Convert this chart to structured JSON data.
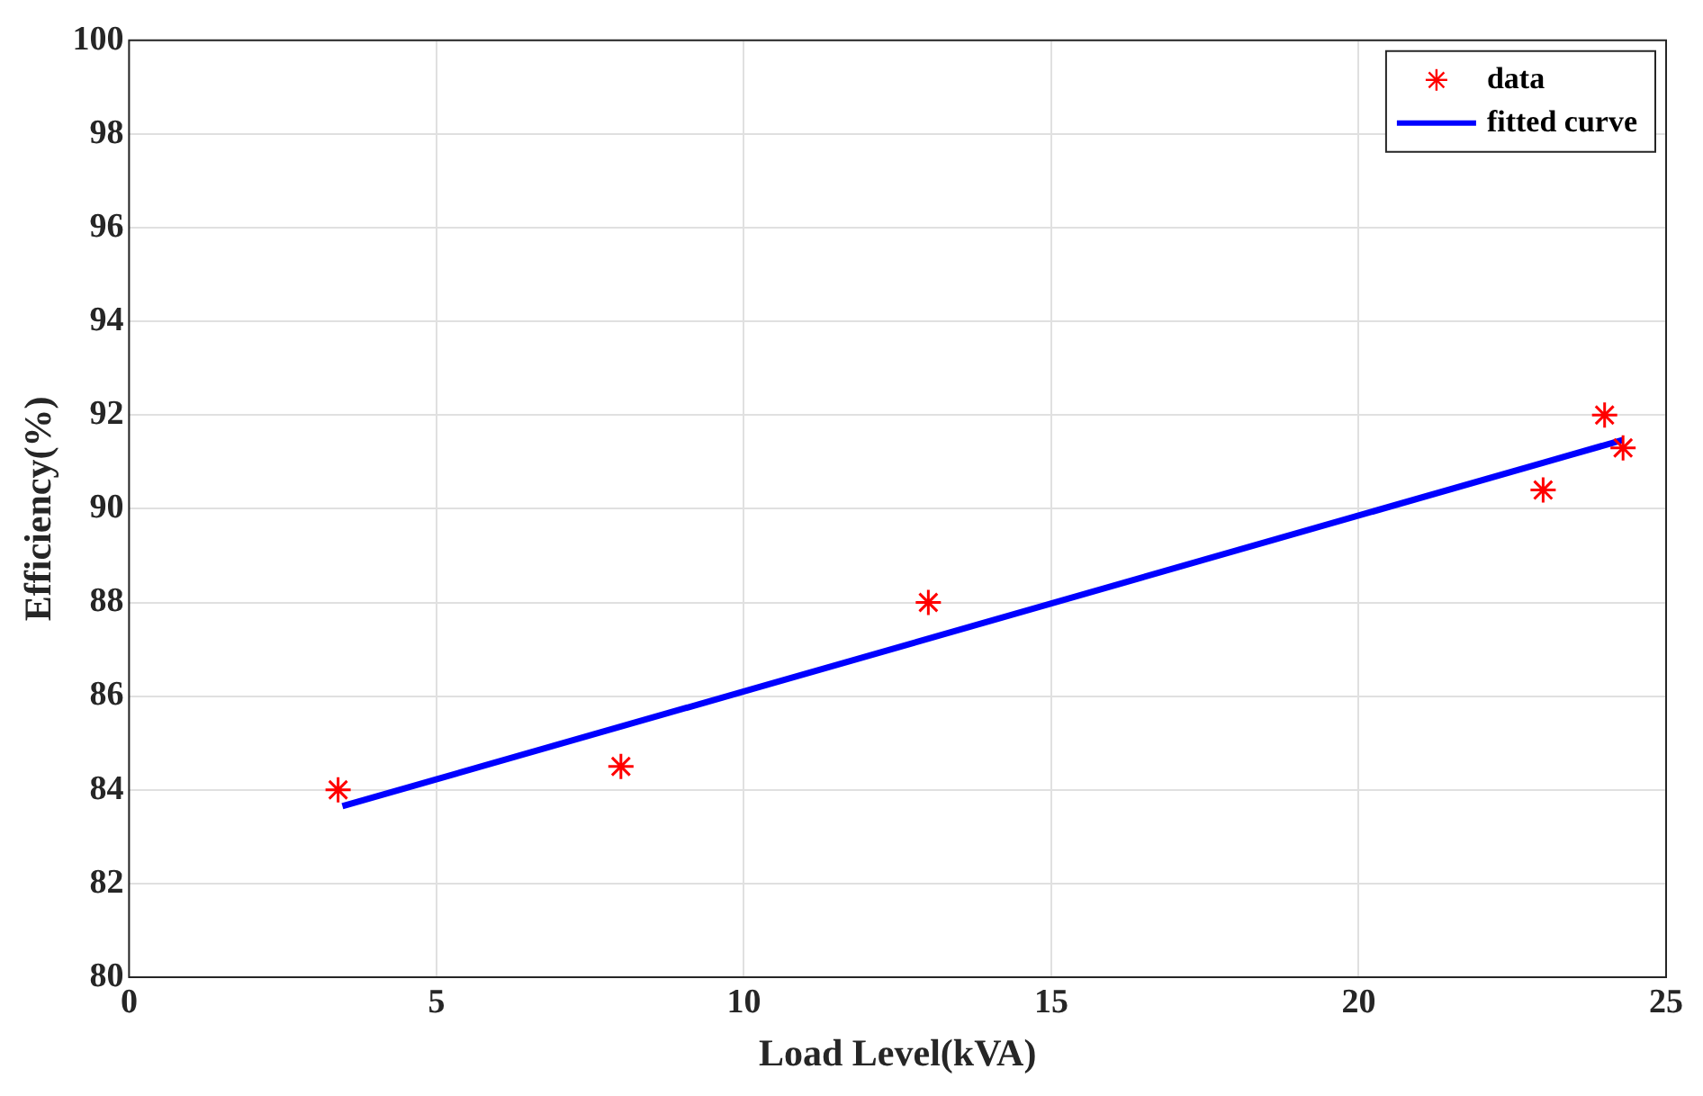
{
  "chart_data": {
    "type": "scatter",
    "xlabel": "Load Level(kVA)",
    "ylabel": "Efficiency(%)",
    "xlim": [
      0,
      25
    ],
    "xticks": [
      0,
      5,
      10,
      15,
      20,
      25
    ],
    "ylim": [
      80,
      100
    ],
    "yticks": [
      80,
      82,
      84,
      86,
      88,
      90,
      92,
      94,
      96,
      98,
      100
    ],
    "grid": true,
    "legend": "top right",
    "series": [
      {
        "name": "data",
        "type": "scatter",
        "marker": "cross",
        "color": "#ff0000",
        "x": [
          3.4,
          8,
          13,
          23,
          24,
          24.3
        ],
        "values": [
          84.0,
          84.5,
          88.0,
          90.4,
          92.0,
          91.3
        ]
      },
      {
        "name": "fitted curve",
        "type": "line",
        "marker": "none",
        "line_style": "solid",
        "color": "#0000ff",
        "x": [
          3.47,
          24.3
        ],
        "values": [
          83.65,
          91.47
        ]
      }
    ]
  }
}
